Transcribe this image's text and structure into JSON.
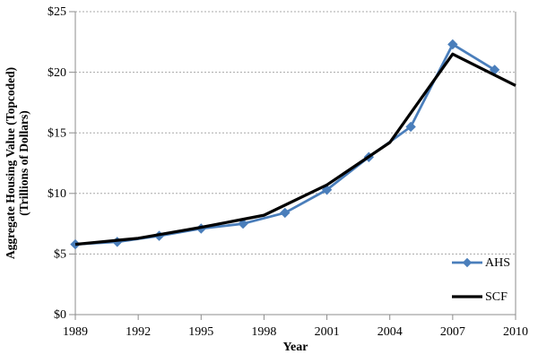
{
  "chart_data": {
    "type": "line",
    "title": "",
    "xlabel": "Year",
    "ylabel_line1": "Aggregate Housing Value (Topcoded)",
    "ylabel_line2": "(Trillions of Dollars)",
    "xlim": [
      1989,
      2010
    ],
    "ylim": [
      0,
      25
    ],
    "x_ticks": [
      1989,
      1992,
      1995,
      1998,
      2001,
      2004,
      2007,
      2010
    ],
    "y_ticks": [
      {
        "value": 0,
        "label": "$0"
      },
      {
        "value": 5,
        "label": "$5"
      },
      {
        "value": 10,
        "label": "$10"
      },
      {
        "value": 15,
        "label": "$15"
      },
      {
        "value": 20,
        "label": "$20"
      },
      {
        "value": 25,
        "label": "$25"
      }
    ],
    "grid": "horizontal-dotted",
    "legend": {
      "position": "inside-bottom-right",
      "entries": [
        "AHS",
        "SCF"
      ]
    },
    "series": [
      {
        "name": "AHS",
        "color": "#4a7ebb",
        "marker": "diamond",
        "x": [
          1989,
          1991,
          1993,
          1995,
          1997,
          1999,
          2001,
          2003,
          2005,
          2007,
          2009
        ],
        "values": [
          5.8,
          6.0,
          6.5,
          7.1,
          7.5,
          8.4,
          10.3,
          13.0,
          15.5,
          22.3,
          20.2
        ]
      },
      {
        "name": "SCF",
        "color": "#000000",
        "marker": "none",
        "x": [
          1989,
          1992,
          1995,
          1998,
          2001,
          2004,
          2007,
          2010
        ],
        "values": [
          5.8,
          6.3,
          7.2,
          8.2,
          10.7,
          14.2,
          21.5,
          18.9
        ]
      }
    ],
    "colors": {
      "axis": "#8c8c8c",
      "grid": "#a8a8a8",
      "background": "#ffffff",
      "text": "#000000"
    }
  }
}
